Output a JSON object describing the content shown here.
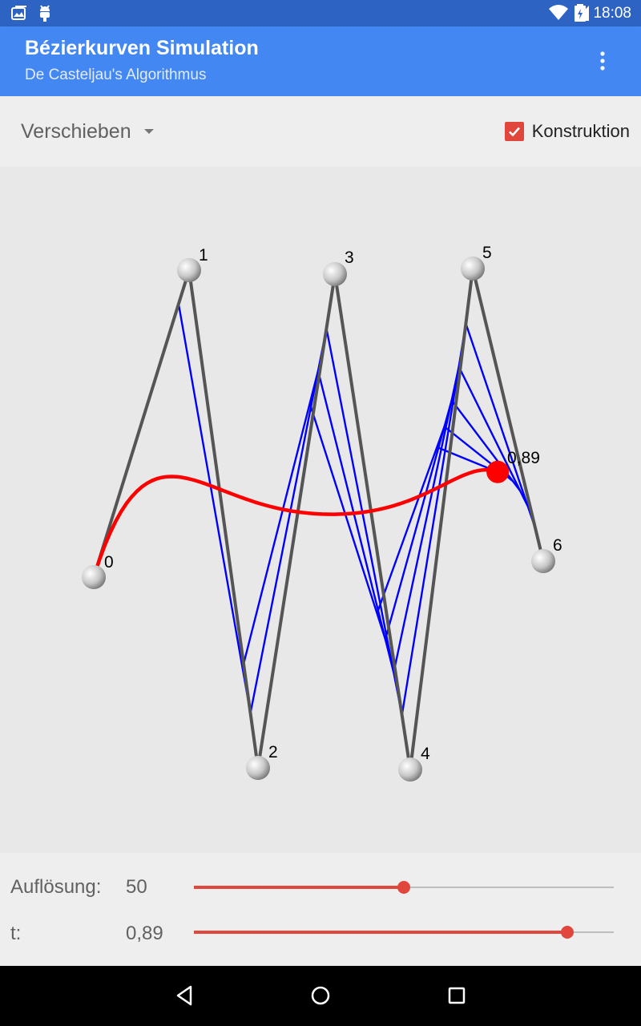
{
  "status_bar": {
    "time": "18:08",
    "icons": [
      "notification-gallery-icon",
      "android-debug-icon",
      "wifi-icon",
      "cellular-signal-icon",
      "battery-charging-icon"
    ]
  },
  "app_bar": {
    "title": "Bézierkurven Simulation",
    "subtitle": "De Casteljau's Algorithmus",
    "overflow_icon": "more-vert-icon",
    "color": "#4387f3"
  },
  "toolbar": {
    "mode_selected": "Verschieben",
    "construction_label": "Konstruktion",
    "construction_checked": true,
    "accent_color": "#e0463b"
  },
  "canvas": {
    "control_point_labels": [
      "0",
      "1",
      "2",
      "3",
      "4",
      "5",
      "6"
    ],
    "t_label": "0,89",
    "curve_color": "#ff0000",
    "construction_color": "#0000ff",
    "polygon_color": "#555555"
  },
  "controls": {
    "resolution_label": "Auflösung:",
    "resolution_value": "50",
    "resolution_fraction": 0.5,
    "t_label": "t:",
    "t_value": "0,89",
    "t_fraction": 0.89
  },
  "nav_bar": {
    "icons": [
      "back-icon",
      "home-icon",
      "recents-icon"
    ]
  }
}
